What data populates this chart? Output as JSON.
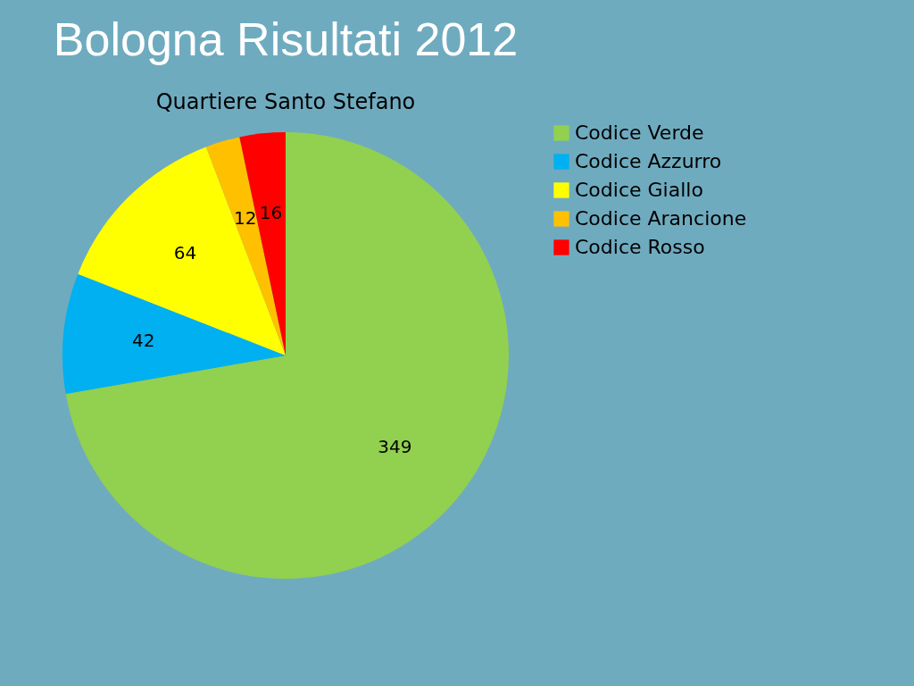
{
  "chart_data": {
    "type": "pie",
    "title": "Bologna Risultati 2012",
    "subtitle": "Quartiere Santo Stefano",
    "categories": [
      "Codice Verde",
      "Codice Azzurro",
      "Codice Giallo",
      "Codice Arancione",
      "Codice Rosso"
    ],
    "values": [
      349,
      42,
      64,
      12,
      16
    ],
    "colors": [
      "#92d050",
      "#00b0f0",
      "#ffff00",
      "#ffc000",
      "#ff0000"
    ],
    "data_labels": true,
    "legend": "right"
  }
}
